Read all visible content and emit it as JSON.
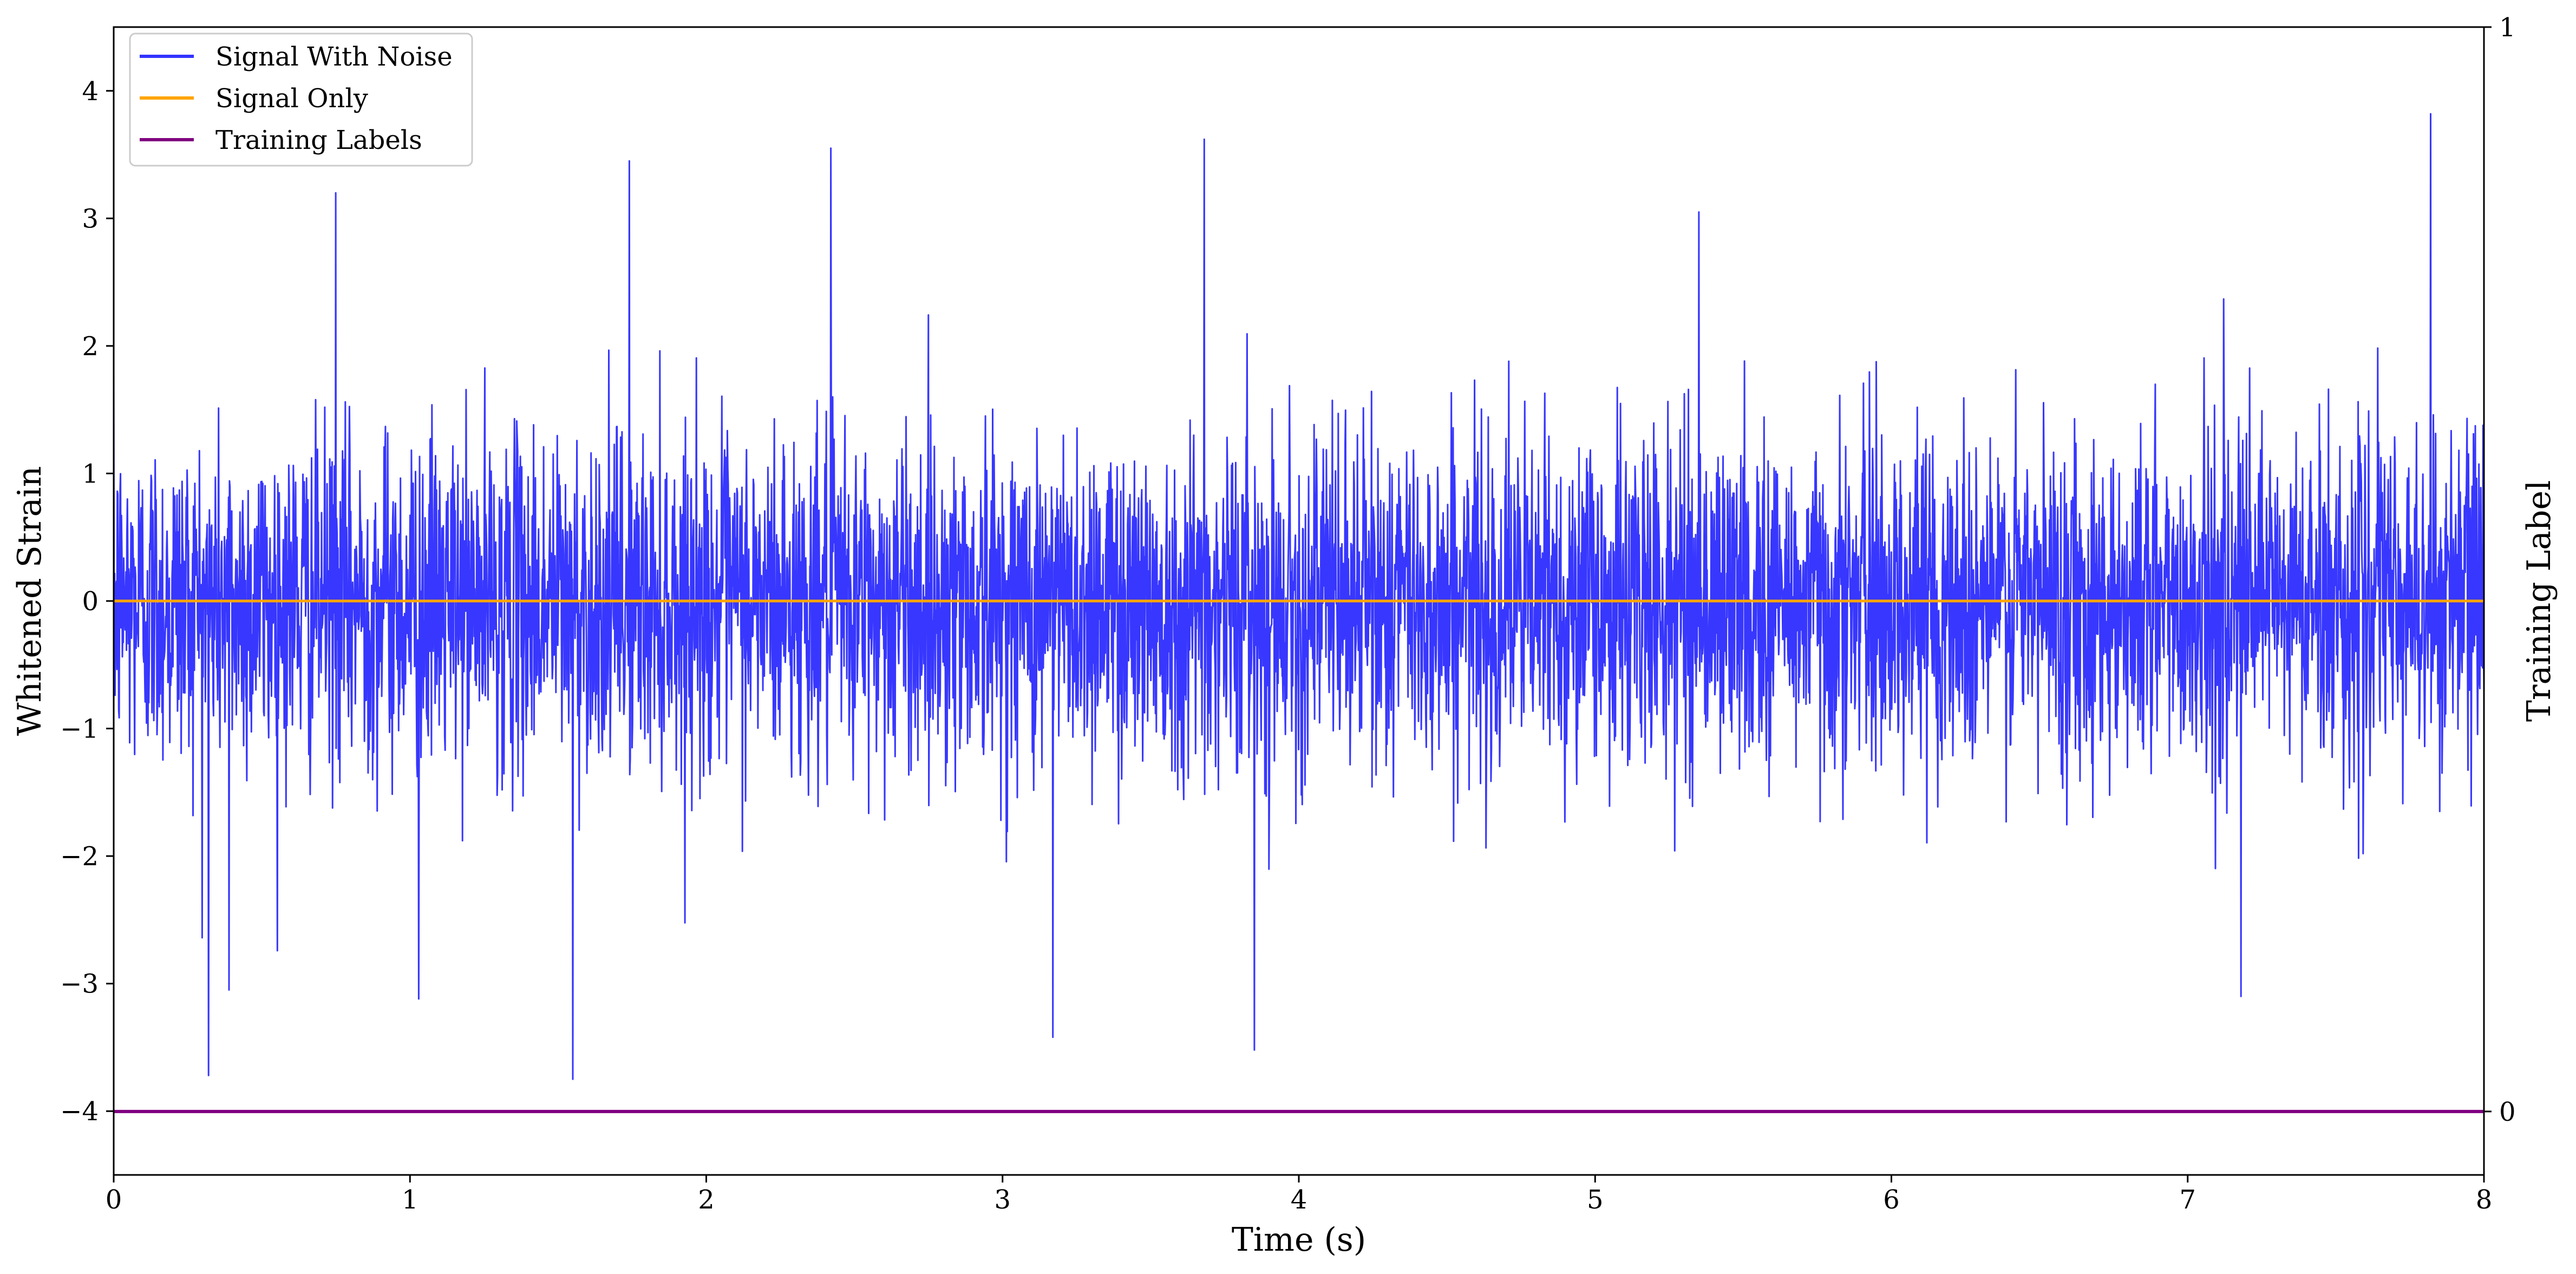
{
  "chart_data": {
    "type": "line",
    "xlabel": "Time (s)",
    "ylabel": "Whitened Strain",
    "ylabel_right": "Training Label",
    "xlim": [
      0,
      8
    ],
    "ylim": [
      -4.5,
      4.5
    ],
    "ylim_right": [
      -0.0585,
      1
    ],
    "x_ticks": [
      "0",
      "1",
      "2",
      "3",
      "4",
      "5",
      "6",
      "7",
      "8"
    ],
    "y_ticks": [
      "−4",
      "−3",
      "−2",
      "−1",
      "0",
      "1",
      "2",
      "3",
      "4"
    ],
    "y_right_ticks": [
      "0",
      "1"
    ],
    "legend_position": "upper-left",
    "grid": false,
    "series": [
      {
        "name": "Signal With Noise",
        "color": "#3333ff",
        "axis": "left",
        "description_values": {
          "envelope_upper_typical": 1.7,
          "envelope_lower_typical": -1.7,
          "peaks": [
            [
              0.75,
              3.2
            ],
            [
              1.74,
              3.45
            ],
            [
              2.42,
              3.55
            ],
            [
              3.68,
              3.62
            ],
            [
              5.35,
              3.05
            ],
            [
              7.82,
              3.82
            ]
          ],
          "troughs": [
            [
              0.32,
              -3.72
            ],
            [
              0.39,
              -3.05
            ],
            [
              1.03,
              -3.12
            ],
            [
              1.55,
              -3.75
            ],
            [
              3.17,
              -3.42
            ],
            [
              3.85,
              -3.52
            ],
            [
              7.18,
              -3.1
            ]
          ]
        }
      },
      {
        "name": "Signal Only",
        "color": "#ffa500",
        "axis": "left",
        "x": [
          0,
          8
        ],
        "y": [
          0,
          0
        ]
      },
      {
        "name": "Training Labels",
        "color": "#800080",
        "axis": "right",
        "x": [
          0,
          8
        ],
        "y": [
          0,
          0
        ]
      }
    ]
  }
}
